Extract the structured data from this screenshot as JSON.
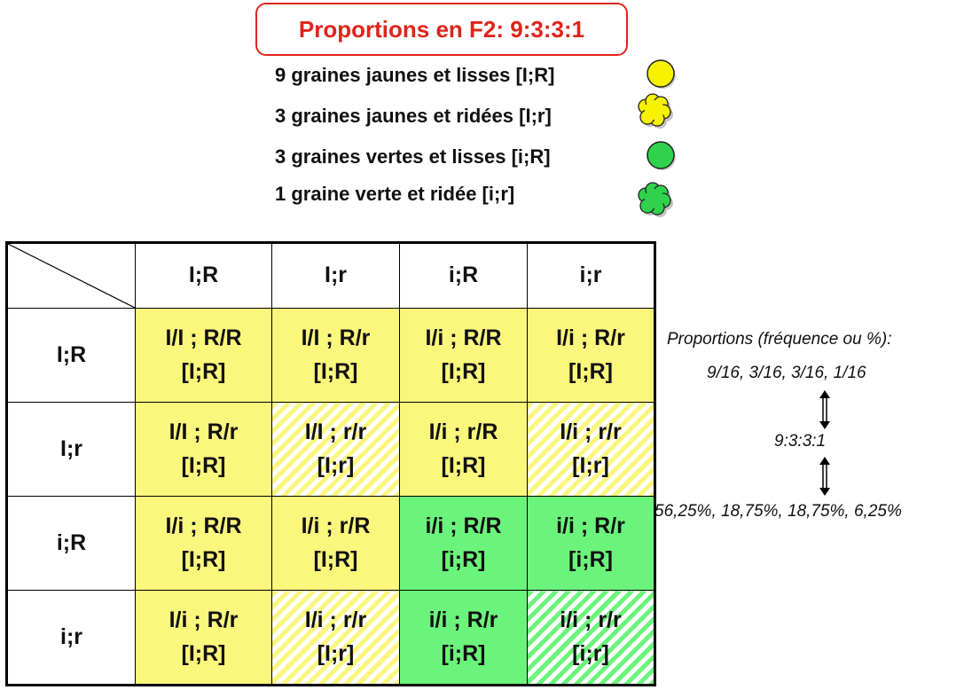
{
  "title": "Proportions en F2: 9:3:3:1",
  "legend": [
    {
      "text": "9 graines jaunes et lisses [I;R]",
      "pea": "yellow-smooth-pea-icon"
    },
    {
      "text": "3 graines jaunes et ridées [I;r]",
      "pea": "yellow-wrinkled-pea-icon"
    },
    {
      "text": "3 graines vertes et lisses [i;R]",
      "pea": "green-smooth-pea-icon"
    },
    {
      "text": "1 graine verte et ridée [i;r]",
      "pea": "green-wrinkled-pea-icon"
    }
  ],
  "colors": {
    "yellow": "#fbf67c",
    "green": "#6bf47b",
    "title_red": "#e0241b",
    "pea_yellow": "#f6f200",
    "pea_green": "#2fd24a"
  },
  "table": {
    "columns": [
      "I;R",
      "I;r",
      "i;R",
      "i;r"
    ],
    "rows": [
      {
        "label": "I;R",
        "cells": [
          {
            "genotype": "I/I ; R/R",
            "phenotype": "[I;R]"
          },
          {
            "genotype": "I/I ; R/r",
            "phenotype": "[I;R]"
          },
          {
            "genotype": "I/i ; R/R",
            "phenotype": "[I;R]"
          },
          {
            "genotype": "I/i ; R/r",
            "phenotype": "[I;R]"
          }
        ]
      },
      {
        "label": "I;r",
        "cells": [
          {
            "genotype": "I/I ; R/r",
            "phenotype": "[I;R]"
          },
          {
            "genotype": "I/I ; r/r",
            "phenotype": "[I;r]"
          },
          {
            "genotype": "I/i ; r/R",
            "phenotype": "[I;R]"
          },
          {
            "genotype": "I/i ; r/r",
            "phenotype": "[I;r]"
          }
        ]
      },
      {
        "label": "i;R",
        "cells": [
          {
            "genotype": "I/i ; R/R",
            "phenotype": "[I;R]"
          },
          {
            "genotype": "I/i ; r/R",
            "phenotype": "[I;R]"
          },
          {
            "genotype": "i/i ; R/R",
            "phenotype": "[i;R]"
          },
          {
            "genotype": "i/i ; R/r",
            "phenotype": "[i;R]"
          }
        ]
      },
      {
        "label": "i;r",
        "cells": [
          {
            "genotype": "I/i ; R/r",
            "phenotype": "[I;R]"
          },
          {
            "genotype": "I/i ; r/r",
            "phenotype": "[I;r]"
          },
          {
            "genotype": "i/i ; R/r",
            "phenotype": "[i;R]"
          },
          {
            "genotype": "i/i ; r/r",
            "phenotype": "[i;r]"
          }
        ]
      }
    ]
  },
  "side": {
    "heading": "Proportions (fréquence ou %):",
    "fractions": "9/16, 3/16, 3/16, 1/16",
    "ratio": "9:3:3:1",
    "percents": "56,25%, 18,75%, 18,75%, 6,25%"
  }
}
